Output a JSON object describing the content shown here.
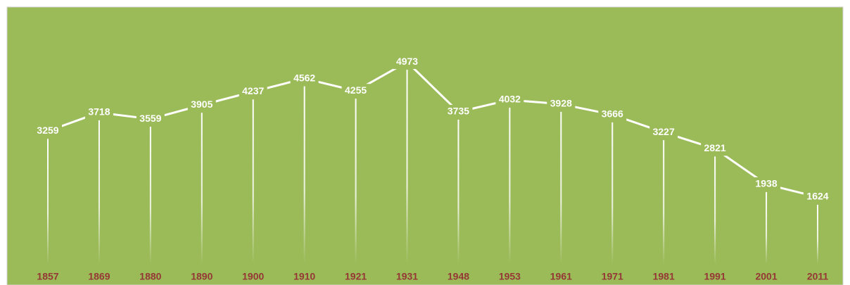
{
  "chart_data": {
    "type": "line",
    "categories": [
      "1857",
      "1869",
      "1880",
      "1890",
      "1900",
      "1910",
      "1921",
      "1931",
      "1948",
      "1953",
      "1961",
      "1971",
      "1981",
      "1991",
      "2001",
      "2011"
    ],
    "values": [
      3259,
      3718,
      3559,
      3905,
      4237,
      4562,
      4255,
      4973,
      3735,
      4032,
      3928,
      3666,
      3227,
      2821,
      1938,
      1624
    ],
    "color": "#ffffff",
    "ylim": [
      0,
      5000
    ]
  }
}
